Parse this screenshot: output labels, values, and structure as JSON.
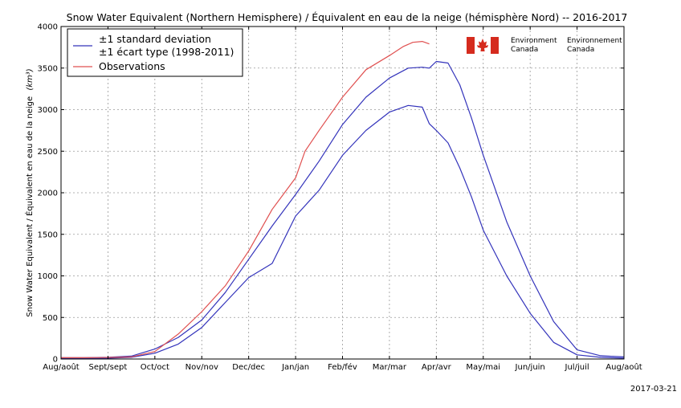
{
  "chart_data": {
    "type": "line",
    "title": "Snow Water Equivalent (Northern Hemisphere) / Équivalent en eau de la neige (hémisphère Nord) -- 2016-2017",
    "ylabel": "Snow Water Equivalent / Équivalent en eau de la neige",
    "ylabel_unit": "(km³)",
    "xlabel": "",
    "ylim": [
      0,
      4000
    ],
    "xlim": [
      0,
      12
    ],
    "y_ticks": [
      0,
      500,
      1000,
      1500,
      2000,
      2500,
      3000,
      3500,
      4000
    ],
    "x_tick_labels": [
      "Aug/août",
      "Sept/sept",
      "Oct/oct",
      "Nov/nov",
      "Dec/dec",
      "Jan/jan",
      "Feb/fév",
      "Mar/mar",
      "Apr/avr",
      "May/mai",
      "Jun/juin",
      "Jul/juil",
      "Aug/août"
    ],
    "grid": true,
    "legend_position": "top-left",
    "legend": {
      "std_label_line1": "±1 standard deviation",
      "std_label_line2": "±1 écart type (1998-2011)",
      "obs_label": "Observations"
    },
    "colors": {
      "std": "#3333bb",
      "obs": "#e05050"
    },
    "series": [
      {
        "name": "±1 standard deviation / ±1 écart type (1998-2011) upper",
        "x": [
          0,
          0.5,
          1,
          1.5,
          2,
          2.5,
          3,
          3.5,
          4,
          4.5,
          5,
          5.5,
          6,
          6.5,
          7,
          7.4,
          7.7,
          7.85,
          8,
          8.25,
          8.5,
          8.75,
          9,
          9.5,
          10,
          10.5,
          11,
          11.5,
          12
        ],
        "values": [
          15,
          15,
          20,
          35,
          120,
          260,
          470,
          800,
          1200,
          1600,
          1980,
          2380,
          2820,
          3150,
          3380,
          3500,
          3510,
          3500,
          3580,
          3560,
          3300,
          2900,
          2450,
          1650,
          1000,
          450,
          110,
          40,
          25
        ]
      },
      {
        "name": "±1 standard deviation / ±1 écart type (1998-2011) lower",
        "x": [
          0,
          0.5,
          1,
          1.5,
          2,
          2.5,
          3,
          3.5,
          4,
          4.5,
          5,
          5.5,
          6,
          6.5,
          7,
          7.4,
          7.7,
          7.85,
          8,
          8.25,
          8.5,
          8.75,
          9,
          9.5,
          10,
          10.5,
          11,
          11.5,
          12
        ],
        "values": [
          8,
          8,
          10,
          20,
          70,
          180,
          380,
          680,
          980,
          1150,
          1720,
          2030,
          2450,
          2750,
          2970,
          3050,
          3030,
          2830,
          2750,
          2600,
          2300,
          1950,
          1550,
          1000,
          550,
          200,
          50,
          20,
          10
        ]
      },
      {
        "name": "Observations",
        "x": [
          0,
          0.5,
          1,
          1.5,
          2,
          2.5,
          3,
          3.5,
          4,
          4.5,
          5,
          5.2,
          5.5,
          6,
          6.5,
          7,
          7.3,
          7.5,
          7.7,
          7.85
        ],
        "values": [
          15,
          15,
          18,
          25,
          90,
          300,
          570,
          880,
          1300,
          1800,
          2180,
          2500,
          2750,
          3150,
          3480,
          3650,
          3760,
          3810,
          3820,
          3790
        ]
      }
    ]
  },
  "logo": {
    "org_en_1": "Environment",
    "org_en_2": "Canada",
    "org_fr_1": "Environnement",
    "org_fr_2": "Canada"
  },
  "footer": {
    "date": "2017-03-21"
  }
}
